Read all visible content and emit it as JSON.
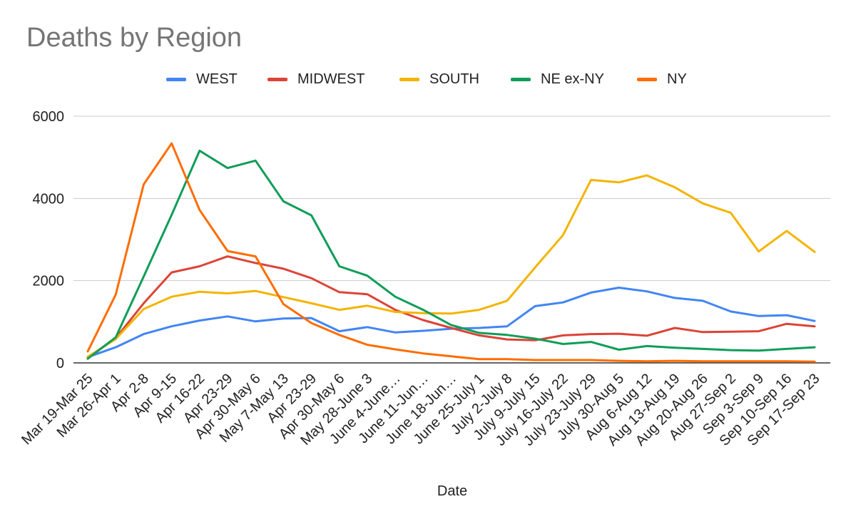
{
  "chart_data": {
    "type": "line",
    "title": "Deaths by Region",
    "xlabel": "Date",
    "ylabel": "",
    "ylim": [
      0,
      6000
    ],
    "yticks": [
      0,
      2000,
      4000,
      6000
    ],
    "grid": true,
    "legend_position": "top",
    "categories": [
      "Mar 19-Mar 25",
      "Mar 26-Apr 1",
      "Apr 2-8",
      "Apr 9-15",
      "Apr 16-22",
      "Apr 23-29",
      "Apr 30-May 6",
      "May 7-May 13",
      "Apr 23-29",
      "Apr 30-May 6",
      "May 28-June 3",
      "June 4-June…",
      "June 11-Jun…",
      "June 18-Jun…",
      "June 25-July 1",
      "July 2-July 8",
      "July 9-July 15",
      "July 16-July 22",
      "July 23-July 29",
      "July 30-Aug 5",
      "Aug 6-Aug 12",
      "Aug 13-Aug 19",
      "Aug 20-Aug 26",
      "Aug 27-Sep 2",
      "Sep 3-Sep 9",
      "Sep 10-Sep 16",
      "Sep 17-Sep 23"
    ],
    "series": [
      {
        "name": "WEST",
        "color": "#4285f4",
        "values": [
          140,
          380,
          700,
          890,
          1030,
          1130,
          1010,
          1080,
          1090,
          770,
          870,
          740,
          780,
          830,
          850,
          890,
          1380,
          1470,
          1710,
          1830,
          1740,
          1580,
          1510,
          1250,
          1140,
          1160,
          1020
        ]
      },
      {
        "name": "MIDWEST",
        "color": "#db4437",
        "values": [
          130,
          600,
          1450,
          2200,
          2350,
          2590,
          2430,
          2290,
          2060,
          1720,
          1670,
          1290,
          1040,
          850,
          670,
          570,
          550,
          670,
          700,
          710,
          660,
          850,
          750,
          760,
          770,
          950,
          890
        ]
      },
      {
        "name": "SOUTH",
        "color": "#f4b400",
        "values": [
          150,
          580,
          1310,
          1610,
          1730,
          1690,
          1750,
          1600,
          1450,
          1290,
          1390,
          1240,
          1210,
          1200,
          1290,
          1510,
          2320,
          3110,
          4450,
          4390,
          4560,
          4270,
          3880,
          3650,
          2710,
          3210,
          2700
        ]
      },
      {
        "name": "NE ex-NY",
        "color": "#0f9d58",
        "values": [
          100,
          620,
          2100,
          3600,
          5160,
          4740,
          4920,
          3930,
          3590,
          2350,
          2120,
          1610,
          1290,
          920,
          730,
          680,
          590,
          460,
          510,
          320,
          410,
          370,
          340,
          310,
          300,
          340,
          380
        ]
      },
      {
        "name": "NY",
        "color": "#ff6d01",
        "values": [
          280,
          1660,
          4340,
          5340,
          3720,
          2720,
          2590,
          1430,
          970,
          680,
          440,
          330,
          230,
          160,
          90,
          90,
          70,
          70,
          70,
          50,
          40,
          50,
          40,
          40,
          40,
          40,
          30
        ]
      }
    ]
  }
}
